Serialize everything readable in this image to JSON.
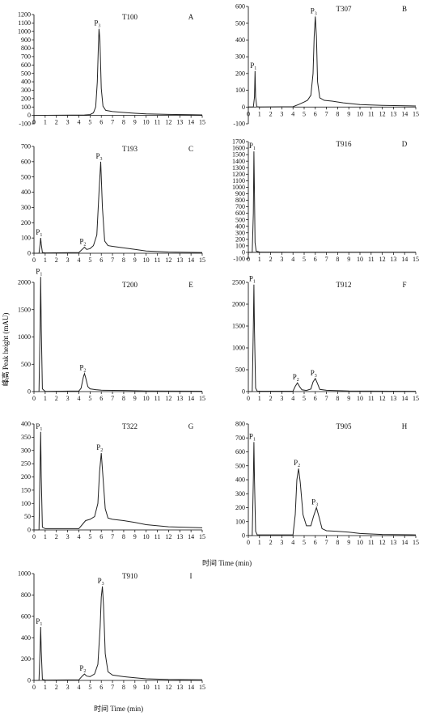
{
  "shared": {
    "ylabel": "峰高 Peak height (mAU)",
    "xlabel": "时间 Time (min)",
    "xlabel2": "时间 Time (min)"
  },
  "chart_data": [
    {
      "id": "A",
      "type": "line",
      "sample": "T100",
      "letter": "A",
      "xlim": [
        0,
        15
      ],
      "ylim": [
        -100,
        1200
      ],
      "yticks": [
        -100,
        0,
        100,
        200,
        300,
        400,
        500,
        600,
        700,
        800,
        900,
        1000,
        1100,
        1200
      ],
      "xticks": [
        0,
        1,
        2,
        3,
        4,
        5,
        6,
        7,
        8,
        9,
        10,
        11,
        12,
        13,
        14,
        15
      ],
      "peaks": [
        {
          "label": "P",
          "sub": "3",
          "x": 5.8,
          "y": 1030
        }
      ],
      "series": [
        {
          "x": [
            0,
            4.5,
            5.0,
            5.3,
            5.5,
            5.65,
            5.75,
            5.8,
            5.88,
            6.0,
            6.15,
            6.4,
            7.0,
            8.0,
            9.0,
            10.0,
            12.0,
            14.0,
            15.0
          ],
          "y": [
            0,
            5,
            10,
            30,
            100,
            400,
            850,
            1030,
            900,
            320,
            110,
            60,
            45,
            35,
            25,
            18,
            12,
            8,
            6
          ]
        }
      ]
    },
    {
      "id": "B",
      "type": "line",
      "sample": "T307",
      "letter": "B",
      "xlim": [
        0,
        15
      ],
      "ylim": [
        -100,
        600
      ],
      "yticks": [
        -100,
        0,
        100,
        200,
        300,
        400,
        500,
        600
      ],
      "xticks": [
        0,
        1,
        2,
        3,
        4,
        5,
        6,
        7,
        8,
        9,
        10,
        11,
        12,
        13,
        14,
        15
      ],
      "peaks": [
        {
          "label": "P",
          "sub": "1",
          "x": 0.6,
          "y": 215
        },
        {
          "label": "P",
          "sub": "3",
          "x": 6.0,
          "y": 540
        }
      ],
      "series": [
        {
          "x": [
            0,
            0.45,
            0.55,
            0.6,
            0.65,
            0.75,
            1.0,
            4.0,
            4.5,
            5.0,
            5.3,
            5.6,
            5.8,
            5.9,
            6.0,
            6.1,
            6.2,
            6.4,
            6.8,
            7.5,
            8.5,
            10.0,
            12.0,
            15.0
          ],
          "y": [
            0,
            0,
            60,
            215,
            60,
            2,
            0,
            2,
            15,
            30,
            40,
            70,
            200,
            420,
            540,
            420,
            150,
            55,
            40,
            35,
            25,
            15,
            10,
            6
          ]
        }
      ]
    },
    {
      "id": "C",
      "type": "line",
      "sample": "T193",
      "letter": "C",
      "xlim": [
        0,
        15
      ],
      "ylim": [
        0,
        700
      ],
      "yticks": [
        0,
        100,
        200,
        300,
        400,
        500,
        600,
        700
      ],
      "xticks": [
        0,
        1,
        2,
        3,
        4,
        5,
        6,
        7,
        8,
        9,
        10,
        11,
        12,
        13,
        14,
        15
      ],
      "peaks": [
        {
          "label": "P",
          "sub": "1",
          "x": 0.6,
          "y": 100
        },
        {
          "label": "P",
          "sub": "2",
          "x": 4.5,
          "y": 40
        },
        {
          "label": "P",
          "sub": "3",
          "x": 5.95,
          "y": 600
        }
      ],
      "series": [
        {
          "x": [
            0,
            0.45,
            0.55,
            0.6,
            0.65,
            0.75,
            1.0,
            4.0,
            4.3,
            4.5,
            4.7,
            5.0,
            5.3,
            5.6,
            5.8,
            5.95,
            6.1,
            6.3,
            6.6,
            7.0,
            8.0,
            9.0,
            10.0,
            12.0,
            15.0
          ],
          "y": [
            0,
            0,
            60,
            100,
            60,
            5,
            2,
            5,
            25,
            40,
            25,
            30,
            50,
            120,
            400,
            600,
            300,
            80,
            50,
            45,
            35,
            25,
            15,
            8,
            5
          ]
        }
      ]
    },
    {
      "id": "D",
      "type": "line",
      "sample": "T916",
      "letter": "D",
      "xlim": [
        0,
        15
      ],
      "ylim": [
        -100,
        1700
      ],
      "yticks": [
        -100,
        0,
        100,
        200,
        300,
        400,
        500,
        600,
        700,
        800,
        900,
        1000,
        1100,
        1200,
        1300,
        1400,
        1500,
        1600,
        1700
      ],
      "xticks": [
        0,
        1,
        2,
        3,
        4,
        5,
        6,
        7,
        8,
        9,
        10,
        11,
        12,
        13,
        14,
        15
      ],
      "peaks": [
        {
          "label": "P",
          "sub": "1",
          "x": 0.5,
          "y": 1550
        }
      ],
      "series": [
        {
          "x": [
            0,
            0.35,
            0.45,
            0.5,
            0.55,
            0.6,
            0.7,
            1.0,
            4.0,
            6.0,
            15.0
          ],
          "y": [
            0,
            0,
            600,
            1550,
            900,
            150,
            20,
            5,
            3,
            3,
            2
          ]
        }
      ]
    },
    {
      "id": "E",
      "type": "line",
      "sample": "T200",
      "letter": "E",
      "xlim": [
        0,
        15
      ],
      "ylim": [
        0,
        2000
      ],
      "yticks": [
        0,
        500,
        1000,
        1500,
        2000
      ],
      "xticks": [
        0,
        1,
        2,
        3,
        4,
        5,
        6,
        7,
        8,
        9,
        10,
        11,
        12,
        13,
        14,
        15
      ],
      "peaks": [
        {
          "label": "P",
          "sub": "1",
          "x": 0.6,
          "y": 2100
        },
        {
          "label": "P",
          "sub": "2",
          "x": 4.5,
          "y": 330
        }
      ],
      "series": [
        {
          "x": [
            0,
            0.45,
            0.55,
            0.6,
            0.65,
            0.75,
            1.0,
            4.0,
            4.2,
            4.4,
            4.5,
            4.6,
            4.8,
            5.0,
            5.5,
            6.0,
            8.0,
            10.0,
            15.0
          ],
          "y": [
            0,
            0,
            1200,
            2100,
            1200,
            50,
            5,
            10,
            60,
            260,
            330,
            260,
            90,
            50,
            35,
            25,
            20,
            12,
            8
          ]
        }
      ]
    },
    {
      "id": "F",
      "type": "line",
      "sample": "T912",
      "letter": "F",
      "xlim": [
        0,
        15
      ],
      "ylim": [
        0,
        2500
      ],
      "yticks": [
        0,
        500,
        1000,
        1500,
        2000,
        2500
      ],
      "xticks": [
        0,
        1,
        2,
        3,
        4,
        5,
        6,
        7,
        8,
        9,
        10,
        11,
        12,
        13,
        14,
        15
      ],
      "peaks": [
        {
          "label": "P",
          "sub": "1",
          "x": 0.5,
          "y": 2450
        },
        {
          "label": "P",
          "sub": "2",
          "x": 4.4,
          "y": 200
        },
        {
          "label": "P",
          "sub": "3",
          "x": 6.0,
          "y": 300
        }
      ],
      "series": [
        {
          "x": [
            0,
            0.35,
            0.45,
            0.5,
            0.55,
            0.65,
            0.8,
            4.0,
            4.2,
            4.4,
            4.6,
            4.8,
            5.2,
            5.6,
            5.8,
            6.0,
            6.2,
            6.4,
            7.0,
            9.0,
            15.0
          ],
          "y": [
            0,
            0,
            1500,
            2450,
            1400,
            80,
            10,
            10,
            120,
            200,
            110,
            40,
            25,
            60,
            220,
            300,
            180,
            50,
            30,
            15,
            8
          ]
        }
      ]
    },
    {
      "id": "G",
      "type": "line",
      "sample": "T322",
      "letter": "G",
      "xlim": [
        0,
        15
      ],
      "ylim": [
        0,
        400
      ],
      "yticks": [
        0,
        50,
        100,
        150,
        200,
        250,
        300,
        350,
        400
      ],
      "xticks": [
        0,
        1,
        2,
        3,
        4,
        5,
        6,
        7,
        8,
        9,
        10,
        11,
        12,
        13,
        14,
        15
      ],
      "peaks": [
        {
          "label": "P",
          "sub": "1",
          "x": 0.6,
          "y": 370
        },
        {
          "label": "P",
          "sub": "2",
          "x": 6.0,
          "y": 290
        }
      ],
      "series": [
        {
          "x": [
            0,
            0.45,
            0.55,
            0.6,
            0.65,
            0.75,
            1.0,
            4.0,
            4.3,
            4.6,
            5.0,
            5.4,
            5.7,
            5.85,
            6.0,
            6.15,
            6.35,
            6.6,
            7.0,
            8.0,
            9.0,
            10.0,
            12.0,
            15.0
          ],
          "y": [
            0,
            0,
            250,
            370,
            200,
            10,
            5,
            5,
            20,
            35,
            40,
            50,
            100,
            220,
            290,
            200,
            80,
            45,
            40,
            35,
            28,
            20,
            12,
            8
          ]
        }
      ]
    },
    {
      "id": "H",
      "type": "line",
      "sample": "T905",
      "letter": "H",
      "xlim": [
        0,
        15
      ],
      "ylim": [
        0,
        800
      ],
      "yticks": [
        0,
        100,
        200,
        300,
        400,
        500,
        600,
        700,
        800
      ],
      "xticks": [
        0,
        1,
        2,
        3,
        4,
        5,
        6,
        7,
        8,
        9,
        10,
        11,
        12,
        13,
        14,
        15
      ],
      "peaks": [
        {
          "label": "P",
          "sub": "1",
          "x": 0.5,
          "y": 670
        },
        {
          "label": "P",
          "sub": "2",
          "x": 4.5,
          "y": 480
        },
        {
          "label": "P",
          "sub": "3",
          "x": 6.1,
          "y": 200
        }
      ],
      "series": [
        {
          "x": [
            0,
            0.35,
            0.45,
            0.5,
            0.55,
            0.65,
            0.8,
            4.0,
            4.2,
            4.35,
            4.5,
            4.65,
            4.9,
            5.2,
            5.6,
            5.85,
            6.1,
            6.35,
            6.6,
            7.0,
            8.0,
            9.0,
            10.0,
            12.0,
            15.0
          ],
          "y": [
            0,
            0,
            400,
            670,
            400,
            30,
            5,
            5,
            150,
            400,
            480,
            380,
            150,
            70,
            70,
            140,
            200,
            130,
            50,
            35,
            30,
            25,
            15,
            8,
            5
          ]
        }
      ]
    },
    {
      "id": "I",
      "type": "line",
      "sample": "T910",
      "letter": "I",
      "xlim": [
        0,
        15
      ],
      "ylim": [
        0,
        1000
      ],
      "yticks": [
        0,
        200,
        400,
        600,
        800,
        1000
      ],
      "xticks": [
        0,
        1,
        2,
        3,
        4,
        5,
        6,
        7,
        8,
        9,
        10,
        11,
        12,
        13,
        14,
        15
      ],
      "peaks": [
        {
          "label": "P",
          "sub": "1",
          "x": 0.6,
          "y": 500
        },
        {
          "label": "P",
          "sub": "2",
          "x": 4.5,
          "y": 60
        },
        {
          "label": "P",
          "sub": "3",
          "x": 6.1,
          "y": 880
        }
      ],
      "series": [
        {
          "x": [
            0,
            0.45,
            0.55,
            0.6,
            0.65,
            0.75,
            1.0,
            4.0,
            4.3,
            4.5,
            4.7,
            5.0,
            5.4,
            5.7,
            5.9,
            6.0,
            6.1,
            6.2,
            6.35,
            6.6,
            7.0,
            8.0,
            9.0,
            10.0,
            12.0,
            15.0
          ],
          "y": [
            0,
            0,
            300,
            500,
            280,
            10,
            3,
            5,
            40,
            60,
            40,
            35,
            60,
            150,
            500,
            780,
            880,
            700,
            250,
            80,
            50,
            35,
            25,
            15,
            8,
            5
          ]
        }
      ]
    }
  ]
}
